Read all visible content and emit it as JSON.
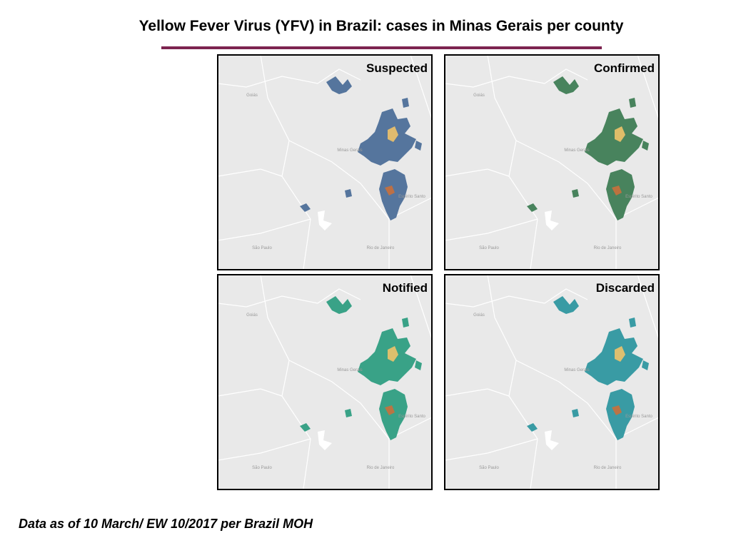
{
  "header": {
    "title": "Yellow Fever Virus (YFV) in Brazil: cases in Minas Gerais per county"
  },
  "panels": [
    {
      "title": "Suspected",
      "color": "#4d6f99"
    },
    {
      "title": "Confirmed",
      "color": "#3f7d55"
    },
    {
      "title": "Notified",
      "color": "#2f9e82"
    },
    {
      "title": "Discarded",
      "color": "#2f97a0"
    }
  ],
  "map_labels": [
    "Goiás",
    "Minas Gerais",
    "Espírito Santo",
    "Rio de Janeiro",
    "São Paulo"
  ],
  "footer": "Data as of 10 March/ EW 10/2017 per Brazil MOH"
}
